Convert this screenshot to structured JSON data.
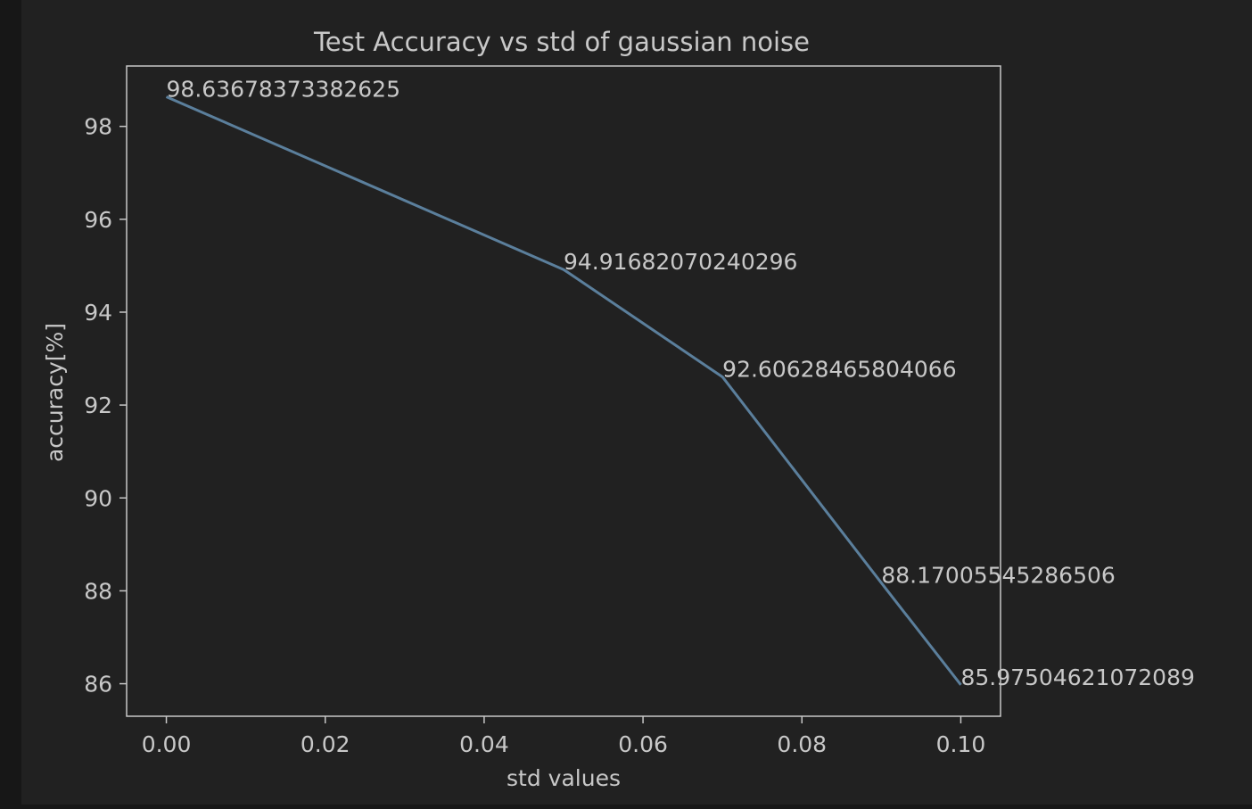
{
  "colors": {
    "page_background": "#171717",
    "figure_background": "#212121",
    "axes_edge": "#c8c8c8",
    "text": "#c8c8c8",
    "line": "#5b7f9c"
  },
  "chart_data": {
    "type": "line",
    "title": "Test Accuracy vs std of gaussian noise",
    "xlabel": "std values",
    "ylabel": "accuracy[%]",
    "xlim": [
      -0.005,
      0.105
    ],
    "ylim": [
      85.3,
      99.3
    ],
    "xticks": [
      0.0,
      0.02,
      0.04,
      0.06,
      0.08,
      0.1
    ],
    "xtick_labels": [
      "0.00",
      "0.02",
      "0.04",
      "0.06",
      "0.08",
      "0.10"
    ],
    "yticks": [
      86,
      88,
      90,
      92,
      94,
      96,
      98
    ],
    "ytick_labels": [
      "86",
      "88",
      "90",
      "92",
      "94",
      "96",
      "98"
    ],
    "grid": false,
    "series": [
      {
        "x": [
          0.0,
          0.05,
          0.07,
          0.09,
          0.1
        ],
        "y": [
          98.63678373382625,
          94.91682070240296,
          92.60628465804066,
          88.17005545286506,
          85.97504621072089
        ],
        "point_labels": [
          "98.63678373382625",
          "94.91682070240296",
          "92.60628465804066",
          "88.17005545286506",
          "85.97504621072089"
        ]
      }
    ]
  }
}
